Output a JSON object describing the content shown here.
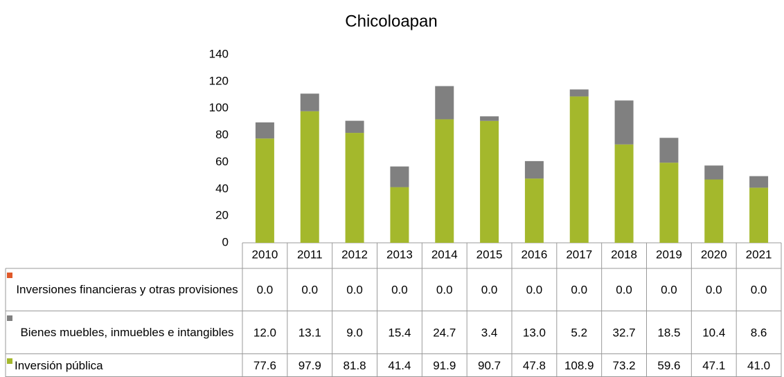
{
  "chart_data": {
    "type": "stacked_bar",
    "title": "Chicoloapan",
    "categories": [
      "2010",
      "2011",
      "2012",
      "2013",
      "2014",
      "2015",
      "2016",
      "2017",
      "2018",
      "2019",
      "2020",
      "2021"
    ],
    "series": [
      {
        "name": "Inversiones financieras y otras provisiones",
        "color": "#e0592a",
        "values": [
          0,
          0,
          0,
          0,
          0,
          0,
          0,
          0,
          0,
          0,
          0,
          0
        ],
        "value_labels": [
          "0.0",
          "0.0",
          "0.0",
          "0.0",
          "0.0",
          "0.0",
          "0.0",
          "0.0",
          "0.0",
          "0.0",
          "0.0",
          "0.0"
        ]
      },
      {
        "name": "Bienes muebles, inmuebles e intangibles",
        "color": "#808080",
        "values": [
          12.0,
          13.1,
          9.0,
          15.4,
          24.7,
          3.4,
          13.0,
          5.2,
          32.7,
          18.5,
          10.4,
          8.6
        ],
        "value_labels": [
          "12.0",
          "13.1",
          "9.0",
          "15.4",
          "24.7",
          "3.4",
          "13.0",
          "5.2",
          "32.7",
          "18.5",
          "10.4",
          "8.6"
        ]
      },
      {
        "name": "Inversión pública",
        "color": "#a4b82c",
        "values": [
          77.6,
          97.9,
          81.8,
          41.4,
          91.9,
          90.7,
          47.8,
          108.9,
          73.2,
          59.6,
          47.1,
          41.0
        ],
        "value_labels": [
          "77.6",
          "97.9",
          "81.8",
          "41.4",
          "91.9",
          "90.7",
          "47.8",
          "108.9",
          "73.2",
          "59.6",
          "47.1",
          "41.0"
        ]
      }
    ],
    "ylim": [
      0,
      140
    ],
    "yticks": [
      0,
      20,
      40,
      60,
      80,
      100,
      120,
      140
    ]
  }
}
